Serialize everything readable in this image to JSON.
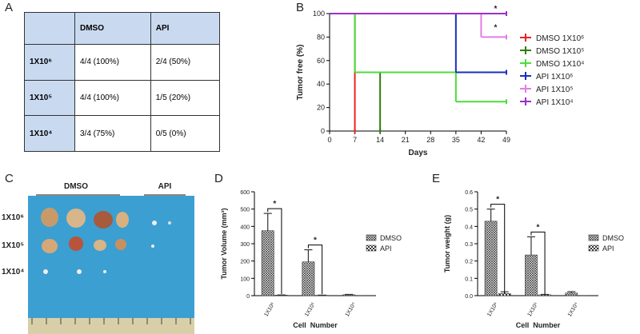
{
  "panel_labels": [
    "A",
    "B",
    "C",
    "D",
    "E"
  ],
  "table": {
    "columns": [
      "DMSO",
      "API"
    ],
    "rows": [
      {
        "label": "1X10⁶",
        "cells": [
          "4/4 (100%)",
          "2/4 (50%)"
        ]
      },
      {
        "label": "1X10⁵",
        "cells": [
          "4/4 (100%)",
          "1/5 (20%)"
        ]
      },
      {
        "label": "1X10⁴",
        "cells": [
          "3/4 (75%)",
          "0/5 (0%)"
        ]
      }
    ]
  },
  "photo": {
    "groups": [
      "DMSO",
      "API"
    ],
    "rows": [
      "1X10⁶",
      "1X10⁵",
      "1X10⁴"
    ]
  },
  "chart_data": [
    {
      "type": "step",
      "x_label": "Days",
      "y_label": "Tumor free (%)",
      "x": [
        0,
        7,
        14,
        35,
        42,
        49
      ],
      "xlim": [
        0,
        49
      ],
      "xticks": [
        0,
        7,
        14,
        21,
        28,
        35,
        42,
        49
      ],
      "ylim": [
        0,
        100
      ],
      "yticks": [
        0,
        20,
        40,
        60,
        80,
        100
      ],
      "series": [
        {
          "name": "DMSO 1X10⁶",
          "color": "#e8251f",
          "values": [
            100,
            0,
            null,
            null,
            null,
            null
          ]
        },
        {
          "name": "DMSO 1X10⁵",
          "color": "#2e7d0f",
          "values": [
            100,
            50,
            0,
            null,
            null,
            null
          ]
        },
        {
          "name": "DMSO 1X10⁴",
          "color": "#4ddc3b",
          "values": [
            100,
            50,
            50,
            25,
            25,
            25
          ]
        },
        {
          "name": "API 1X10⁶",
          "color": "#1a2fbf",
          "values": [
            100,
            100,
            100,
            50,
            50,
            50
          ]
        },
        {
          "name": "API 1X10⁵",
          "color": "#e57ce6",
          "values": [
            100,
            100,
            100,
            100,
            80,
            80
          ]
        },
        {
          "name": "API 1X10⁴",
          "color": "#9b2fc9",
          "values": [
            100,
            100,
            100,
            100,
            100,
            100
          ]
        }
      ],
      "annotations": [
        "*",
        "*"
      ]
    },
    {
      "type": "bar",
      "x_label": "Cell  Number",
      "y_label": "Tumor Volume (mm³)",
      "categories": [
        "1X10⁶",
        "1X10⁵",
        "1X10⁴"
      ],
      "ylim": [
        0,
        600
      ],
      "yticks": [
        0,
        100,
        200,
        300,
        400,
        500,
        600
      ],
      "series": [
        {
          "name": "DMSO",
          "color": "#333333",
          "values": [
            375,
            195,
            5
          ],
          "errors": [
            100,
            70,
            2
          ]
        },
        {
          "name": "API",
          "color": "#333333",
          "values": [
            3,
            2,
            0
          ],
          "errors": [
            1,
            1,
            0
          ]
        }
      ],
      "annotations": [
        "*",
        "*"
      ]
    },
    {
      "type": "bar",
      "x_label": "Cell  Number",
      "y_label": "Tumor weight (g)",
      "categories": [
        "1X10⁶",
        "1X10⁵",
        "1X10⁴"
      ],
      "ylim": [
        0,
        0.6
      ],
      "yticks": [
        {
          "value": 0,
          "label": "0.0"
        },
        0.1,
        0.2,
        0.3,
        0.4,
        0.5,
        0.6
      ],
      "series": [
        {
          "name": "DMSO",
          "color": "#333333",
          "values": [
            0.43,
            0.235,
            0.015
          ],
          "errors": [
            0.07,
            0.105,
            0.008
          ]
        },
        {
          "name": "API",
          "color": "#333333",
          "values": [
            0.012,
            0.005,
            0
          ],
          "errors": [
            0.01,
            0.002,
            0
          ]
        }
      ],
      "annotations": [
        "*",
        "*"
      ]
    }
  ]
}
